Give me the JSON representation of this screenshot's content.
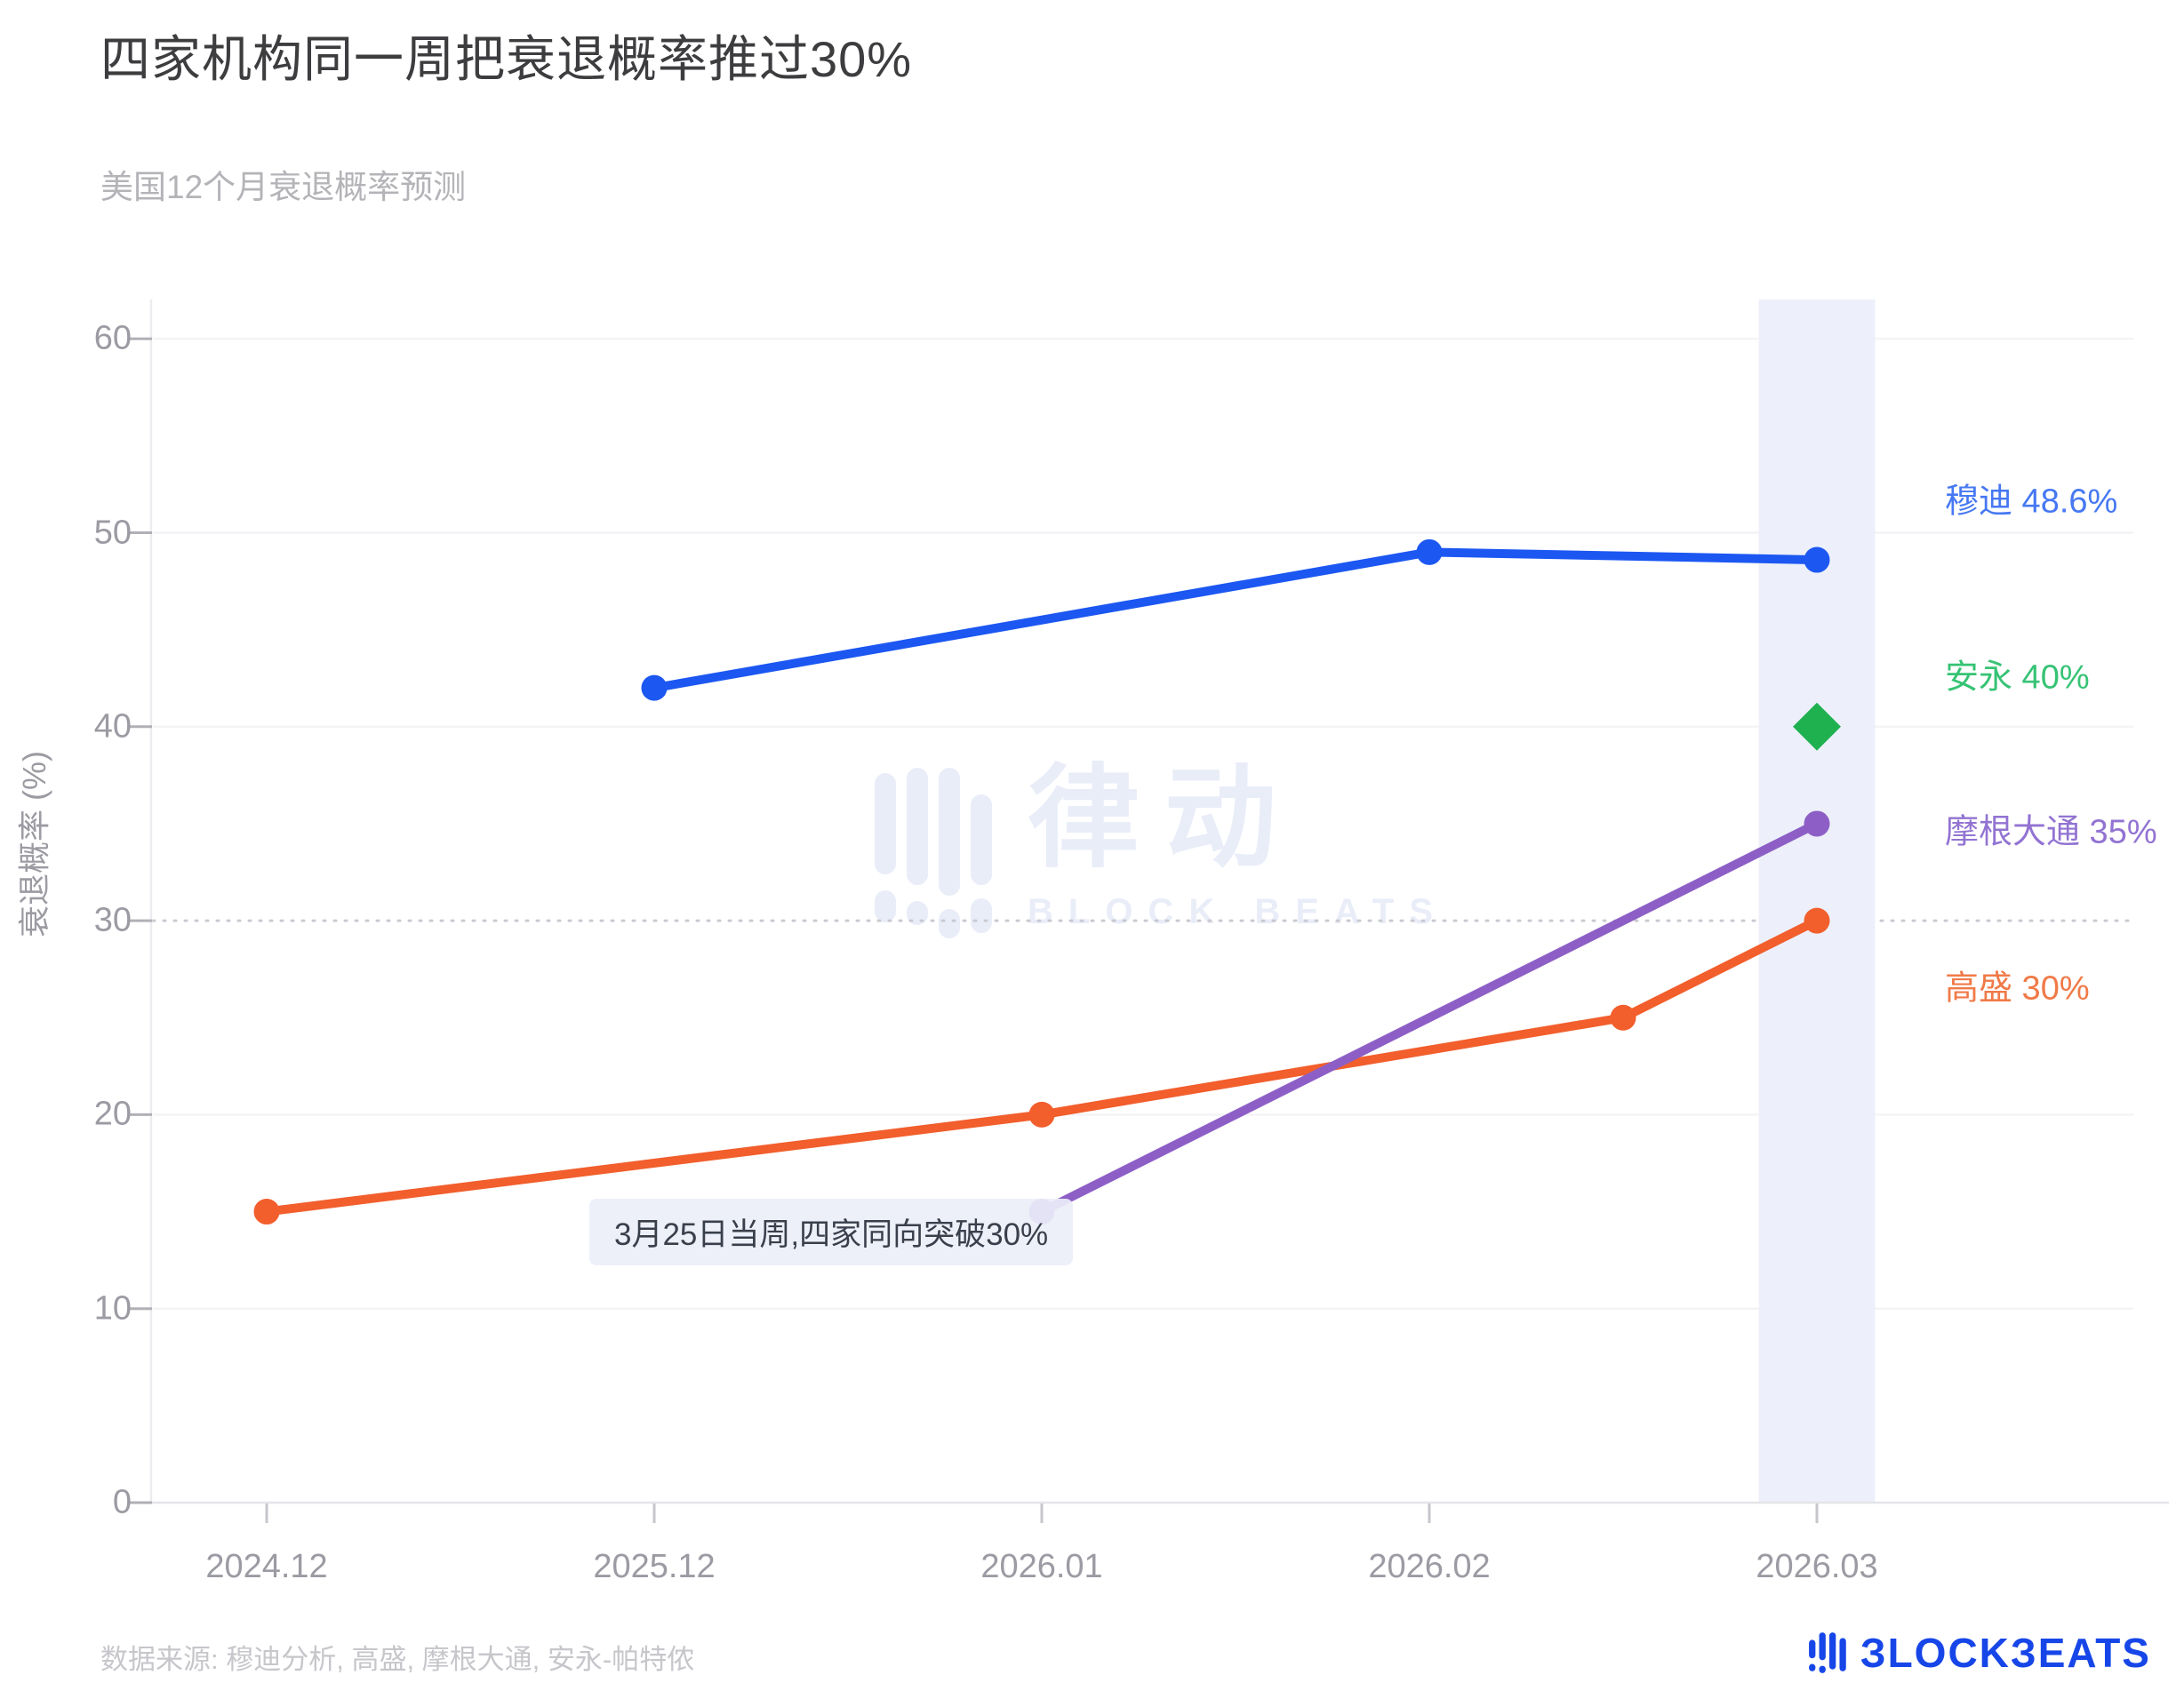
{
  "page": {
    "title": "四家机构同一周把衰退概率推过30%",
    "subtitle": "美国12个月衰退概率预测",
    "source_note": "数据来源: 穆迪分析, 高盛, 摩根大通, 安永-帕特侬"
  },
  "watermark": {
    "cn": "律动",
    "en": "BLOCK BEATS",
    "color": "#e9edf8"
  },
  "brand": {
    "wordmark": "ЗLOCKЗEATS",
    "color": "#1746e8"
  },
  "annotation": {
    "text": "3月25日当周,四家同向突破30%"
  },
  "chart_data": {
    "type": "line",
    "title": "四家机构同一周把衰退概率推过30%",
    "subtitle": "美国12个月衰退概率预测",
    "xlabel": "",
    "ylabel": "衰退概率 (%)",
    "ylim": [
      0,
      62
    ],
    "yticks": [
      0,
      10,
      20,
      30,
      40,
      50,
      60
    ],
    "x_tick_labels": [
      "2024.12",
      "2025.12",
      "2026.01",
      "2026.02",
      "2026.03"
    ],
    "grid": "horizontal-faint",
    "legend_position": "right",
    "reference_line": {
      "value": 30,
      "style": "dotted"
    },
    "highlight_band": {
      "x_from": 3.85,
      "x_to": 4.15,
      "note": "2026.03 week highlighted"
    },
    "annotation": "3月25日当周,四家同向突破30%",
    "series": [
      {
        "name": "穆迪",
        "label": "穆迪 48.6%",
        "color": "#1c57f2",
        "label_color": "#4678f2",
        "marker": "circle",
        "points": [
          {
            "x": 1,
            "y": 42
          },
          {
            "x": 3,
            "y": 49
          },
          {
            "x": 4,
            "y": 48.6
          }
        ]
      },
      {
        "name": "安永",
        "label": "安永 40%",
        "color": "#1fb150",
        "label_color": "#36c374",
        "marker": "diamond",
        "points": [
          {
            "x": 4,
            "y": 40
          }
        ]
      },
      {
        "name": "摩根大通",
        "label": "摩根大通 35%",
        "color": "#8d5fc6",
        "label_color": "#9273d2",
        "marker": "circle",
        "points": [
          {
            "x": 2,
            "y": 15
          },
          {
            "x": 4,
            "y": 35
          }
        ]
      },
      {
        "name": "高盛",
        "label": "高盛 30%",
        "color": "#f25e2c",
        "label_color": "#f07a48",
        "marker": "circle",
        "points": [
          {
            "x": 0,
            "y": 15
          },
          {
            "x": 2,
            "y": 20
          },
          {
            "x": 3.5,
            "y": 25
          },
          {
            "x": 4,
            "y": 30
          }
        ]
      }
    ]
  }
}
